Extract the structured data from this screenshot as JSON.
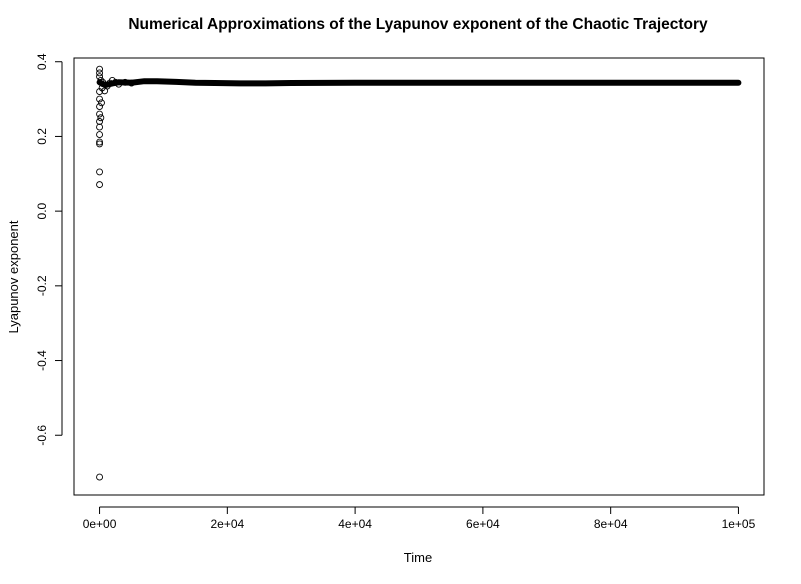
{
  "chart_data": {
    "type": "scatter",
    "title": "Numerical Approximations of the Lyapunov exponent of the Chaotic Trajectory",
    "xlabel": "Time",
    "ylabel": "Lyapunov exponent",
    "xlim": [
      -4000,
      104000
    ],
    "ylim": [
      -0.76,
      0.41
    ],
    "x_ticks": [
      0,
      20000,
      40000,
      60000,
      80000,
      100000
    ],
    "x_tick_labels": [
      "0e+00",
      "2e+04",
      "4e+04",
      "6e+04",
      "8e+04",
      "1e+05"
    ],
    "y_ticks": [
      -0.6,
      -0.4,
      -0.2,
      0.0,
      0.2,
      0.4
    ],
    "y_tick_labels": [
      "-0.6",
      "-0.4",
      "-0.2",
      "0.0",
      "0.2",
      "0.4"
    ],
    "grid": false,
    "legend": "none",
    "marker": "open-circle",
    "color": "#000000",
    "points": [
      {
        "x": 0,
        "y": -0.712
      },
      {
        "x": 0,
        "y": 0.071
      },
      {
        "x": 0,
        "y": 0.105
      },
      {
        "x": 0,
        "y": 0.18
      },
      {
        "x": 0,
        "y": 0.185
      },
      {
        "x": 0,
        "y": 0.205
      },
      {
        "x": 0,
        "y": 0.225
      },
      {
        "x": 0,
        "y": 0.24
      },
      {
        "x": 0,
        "y": 0.26
      },
      {
        "x": 0,
        "y": 0.28
      },
      {
        "x": 0,
        "y": 0.3
      },
      {
        "x": 0,
        "y": 0.32
      },
      {
        "x": 0,
        "y": 0.36
      },
      {
        "x": 0,
        "y": 0.37
      },
      {
        "x": 0,
        "y": 0.38
      },
      {
        "x": 200,
        "y": 0.25
      },
      {
        "x": 200,
        "y": 0.35
      },
      {
        "x": 300,
        "y": 0.29
      },
      {
        "x": 400,
        "y": 0.33
      },
      {
        "x": 500,
        "y": 0.345
      },
      {
        "x": 800,
        "y": 0.322
      },
      {
        "x": 1200,
        "y": 0.335
      },
      {
        "x": 1600,
        "y": 0.343
      },
      {
        "x": 2000,
        "y": 0.35
      },
      {
        "x": 2500,
        "y": 0.345
      },
      {
        "x": 3000,
        "y": 0.34
      },
      {
        "x": 4000,
        "y": 0.345
      },
      {
        "x": 5000,
        "y": 0.343
      }
    ],
    "series": [
      {
        "x": [
          0,
          500,
          1000,
          2000,
          3000,
          5000,
          7000,
          9000,
          12000,
          15000,
          18000,
          22000,
          26000,
          30000,
          40000,
          50000,
          60000,
          70000,
          80000,
          90000,
          100000
        ],
        "y": [
          0.345,
          0.34,
          0.338,
          0.342,
          0.345,
          0.344,
          0.348,
          0.348,
          0.346,
          0.344,
          0.343,
          0.342,
          0.342,
          0.343,
          0.344,
          0.344,
          0.344,
          0.344,
          0.344,
          0.344,
          0.344
        ]
      }
    ]
  }
}
